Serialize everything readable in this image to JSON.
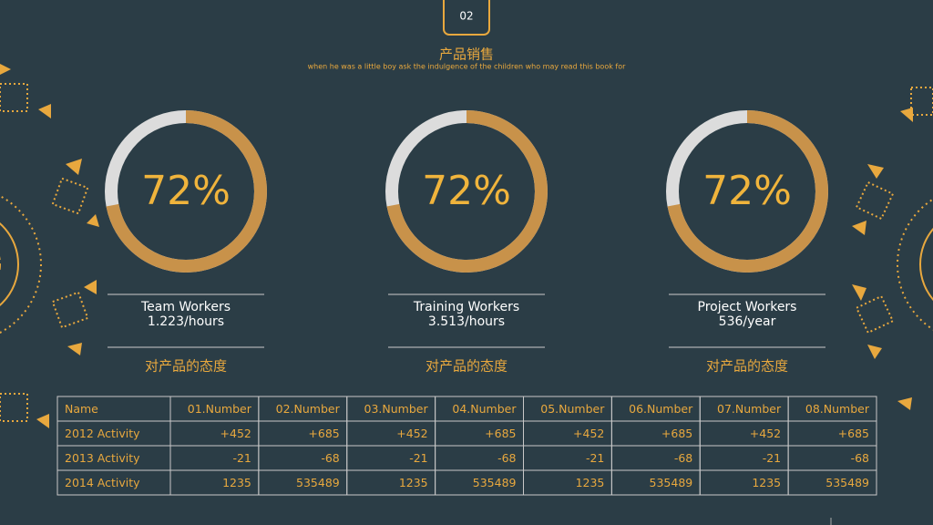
{
  "badge": "02",
  "title": "产品销售",
  "subtitle": "when he was a little boy ask the indulgence of the children who may read this book for",
  "cards": [
    {
      "value": 72,
      "label": "72%",
      "name": "Team Workers",
      "rate": "1.223/hours",
      "caption": "对产品的态度"
    },
    {
      "value": 72,
      "label": "72%",
      "name": "Training Workers",
      "rate": "3.513/hours",
      "caption": "对产品的态度"
    },
    {
      "value": 72,
      "label": "72%",
      "name": "Project Workers",
      "rate": "536/year",
      "caption": "对产品的态度"
    }
  ],
  "table": {
    "header": [
      "Name",
      "01.Number",
      "02.Number",
      "03.Number",
      "04.Number",
      "05.Number",
      "06.Number",
      "07.Number",
      "08.Number"
    ],
    "rows": [
      [
        "2012 Activity",
        "+452",
        "+685",
        "+452",
        "+685",
        "+452",
        "+685",
        "+452",
        "+685"
      ],
      [
        "2013 Activity",
        "-21",
        "-68",
        "-21",
        "-68",
        "-21",
        "-68",
        "-21",
        "-68"
      ],
      [
        "2014 Activity",
        "1235",
        "535489",
        "1235",
        "535489",
        "1235",
        "535489",
        "1235",
        "535489"
      ]
    ]
  }
}
